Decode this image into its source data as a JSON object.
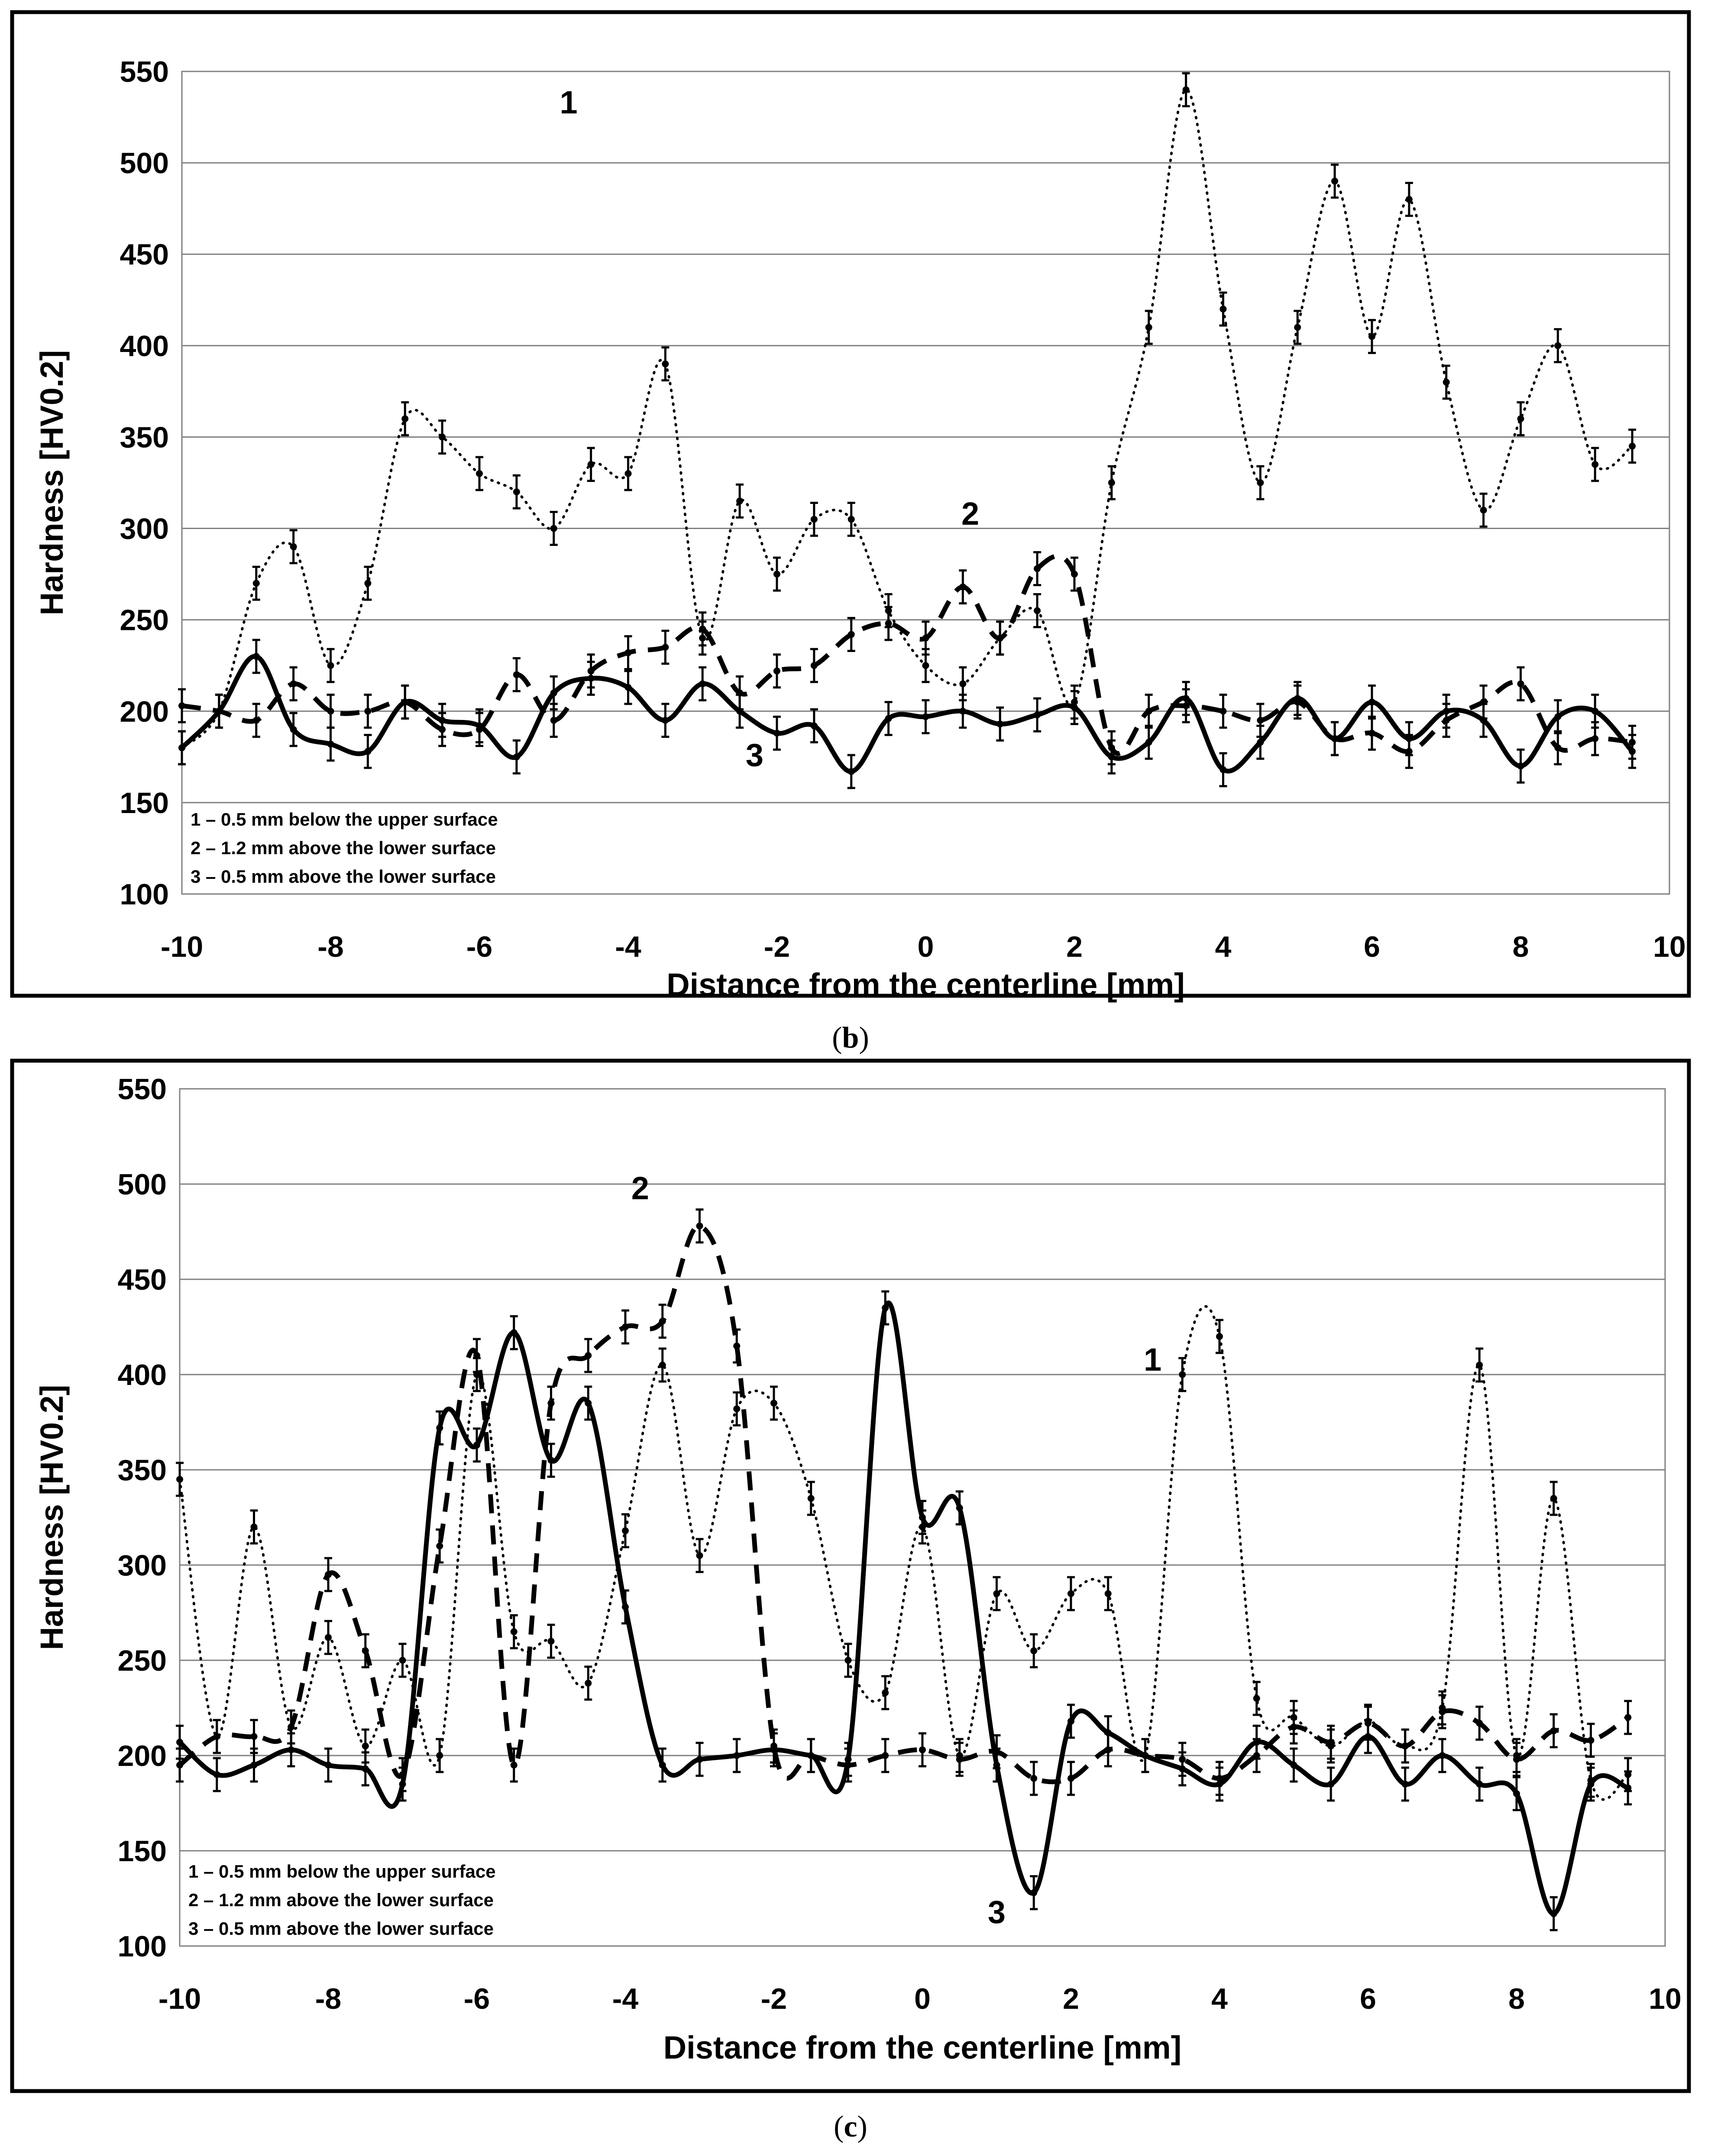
{
  "chart_data": [
    {
      "type": "line",
      "panel_label": "b",
      "xlabel": "Distance from the centerline [mm]",
      "ylabel": "Hardness [HV0.2]",
      "xlim": [
        -10,
        10
      ],
      "ylim": [
        100,
        550
      ],
      "xticks": [
        "-10",
        "-8",
        "-6",
        "-4",
        "-2",
        "0",
        "2",
        "4",
        "6",
        "8",
        "10"
      ],
      "yticks": [
        "100",
        "150",
        "200",
        "250",
        "300",
        "350",
        "400",
        "450",
        "500",
        "550"
      ],
      "grid": "horizontal",
      "legend": {
        "position": "bottom-left",
        "entries": [
          "1 – 0.5 mm below the upper surface",
          "2 – 1.2 mm above the lower surface",
          "3 – 0.5 mm above the lower surface"
        ]
      },
      "series": [
        {
          "name": "1",
          "style": "dotted",
          "label_at": [
            -4.8,
            527
          ],
          "x": [
            -10,
            -9.5,
            -9,
            -8.5,
            -8,
            -7.5,
            -7,
            -6.5,
            -6,
            -5.5,
            -5,
            -4.5,
            -4,
            -3.5,
            -3,
            -2.5,
            -2,
            -1.5,
            -1,
            -0.5,
            0,
            0.5,
            1,
            1.5,
            2,
            2.5,
            3,
            3.5,
            4,
            4.5,
            5,
            5.5,
            6,
            6.5,
            7,
            7.5,
            8,
            8.5,
            9,
            9.5
          ],
          "y": [
            180,
            200,
            270,
            290,
            225,
            270,
            360,
            350,
            330,
            320,
            300,
            335,
            330,
            390,
            240,
            315,
            275,
            305,
            305,
            255,
            225,
            215,
            240,
            255,
            205,
            325,
            410,
            540,
            420,
            325,
            410,
            490,
            405,
            480,
            380,
            310,
            360,
            400,
            335,
            345
          ]
        },
        {
          "name": "2",
          "style": "dashed",
          "label_at": [
            0.6,
            302
          ],
          "x": [
            -10,
            -9.5,
            -9,
            -8.5,
            -8,
            -7.5,
            -7,
            -6.5,
            -6,
            -5.5,
            -5,
            -4.5,
            -4,
            -3.5,
            -3,
            -2.5,
            -2,
            -1.5,
            -1,
            -0.5,
            0,
            0.5,
            1,
            1.5,
            2,
            2.5,
            3,
            3.5,
            4,
            4.5,
            5,
            5.5,
            6,
            6.5,
            7,
            7.5,
            8,
            8.5,
            9,
            9.5
          ],
          "y": [
            203,
            200,
            195,
            215,
            200,
            200,
            205,
            190,
            190,
            220,
            195,
            222,
            232,
            235,
            245,
            210,
            222,
            225,
            242,
            248,
            240,
            268,
            240,
            278,
            275,
            180,
            200,
            203,
            200,
            195,
            205,
            185,
            188,
            178,
            195,
            205,
            215,
            180,
            185,
            183
          ]
        },
        {
          "name": "3",
          "style": "solid",
          "label_at": [
            -2.3,
            170
          ],
          "x": [
            -10,
            -9.5,
            -9,
            -8.5,
            -8,
            -7.5,
            -7,
            -6.5,
            -6,
            -5.5,
            -5,
            -4.5,
            -4,
            -3.5,
            -3,
            -2.5,
            -2,
            -1.5,
            -1,
            -0.5,
            0,
            0.5,
            1,
            1.5,
            2,
            2.5,
            3,
            3.5,
            4,
            4.5,
            5,
            5.5,
            6,
            6.5,
            7,
            7.5,
            8,
            8.5,
            9,
            9.5
          ],
          "y": [
            180,
            200,
            230,
            190,
            182,
            178,
            205,
            195,
            192,
            175,
            210,
            218,
            213,
            195,
            215,
            200,
            188,
            192,
            167,
            196,
            197,
            200,
            193,
            198,
            202,
            175,
            183,
            207,
            168,
            183,
            207,
            185,
            205,
            185,
            200,
            195,
            170,
            197,
            200,
            178
          ]
        }
      ]
    },
    {
      "type": "line",
      "panel_label": "c",
      "xlabel": "Distance from the centerline [mm]",
      "ylabel": "Hardness [HV0.2]",
      "xlim": [
        -10,
        10
      ],
      "ylim": [
        100,
        550
      ],
      "xticks": [
        "-10",
        "-8",
        "-6",
        "-4",
        "-2",
        "0",
        "2",
        "4",
        "6",
        "8",
        "10"
      ],
      "yticks": [
        "100",
        "150",
        "200",
        "250",
        "300",
        "350",
        "400",
        "450",
        "500",
        "550"
      ],
      "grid": "horizontal",
      "legend": {
        "position": "bottom-left",
        "entries": [
          "1 – 0.5 mm below the upper surface",
          "2 – 1.2 mm above the lower surface",
          "3 – 0.5 mm above the lower surface"
        ]
      },
      "series": [
        {
          "name": "1",
          "style": "dotted",
          "label_at": [
            3.1,
            402
          ],
          "x": [
            -10,
            -9.5,
            -9,
            -8.5,
            -8,
            -7.5,
            -7,
            -6.5,
            -6,
            -5.5,
            -5,
            -4.5,
            -4,
            -3.5,
            -3,
            -2.5,
            -2,
            -1.5,
            -1,
            -0.5,
            0,
            0.5,
            1,
            1.5,
            2,
            2.5,
            3,
            3.5,
            4,
            4.5,
            5,
            5.5,
            6,
            6.5,
            7,
            7.5,
            8,
            8.5,
            9,
            9.5
          ],
          "y": [
            345,
            210,
            320,
            215,
            262,
            205,
            250,
            200,
            400,
            265,
            260,
            238,
            318,
            405,
            305,
            382,
            385,
            335,
            250,
            233,
            320,
            200,
            285,
            255,
            285,
            285,
            200,
            400,
            420,
            230,
            220,
            205,
            218,
            205,
            225,
            405,
            200,
            335,
            187,
            190
          ]
        },
        {
          "name": "2",
          "style": "dashed",
          "label_at": [
            -3.8,
            492
          ],
          "x": [
            -10,
            -9.5,
            -9,
            -8.5,
            -8,
            -7.5,
            -7,
            -6.5,
            -6,
            -5.5,
            -5,
            -4.5,
            -4,
            -3.5,
            -3,
            -2.5,
            -2,
            -1.5,
            -1,
            -0.5,
            0,
            0.5,
            1,
            1.5,
            2,
            2.5,
            3,
            3.5,
            4,
            4.5,
            5,
            5.5,
            6,
            6.5,
            7,
            7.5,
            8,
            8.5,
            9,
            9.5
          ],
          "y": [
            195,
            210,
            210,
            215,
            295,
            255,
            190,
            310,
            410,
            195,
            385,
            410,
            425,
            428,
            478,
            415,
            205,
            200,
            195,
            200,
            203,
            198,
            202,
            188,
            188,
            203,
            200,
            198,
            188,
            200,
            215,
            207,
            217,
            205,
            223,
            217,
            198,
            213,
            208,
            220
          ]
        },
        {
          "name": "3",
          "style": "solid",
          "label_at": [
            1.0,
            112
          ],
          "x": [
            -10,
            -9.5,
            -9,
            -8.5,
            -8,
            -7.5,
            -7,
            -6.5,
            -6,
            -5.5,
            -5,
            -4.5,
            -4,
            -3.5,
            -3,
            -2.5,
            -2,
            -1.5,
            -1,
            -0.5,
            0,
            0.5,
            1,
            1.5,
            2,
            2.5,
            3,
            3.5,
            4,
            4.5,
            5,
            5.5,
            6,
            6.5,
            7,
            7.5,
            8,
            8.5,
            9,
            9.5
          ],
          "y": [
            207,
            190,
            195,
            203,
            195,
            193,
            185,
            372,
            363,
            422,
            355,
            385,
            278,
            195,
            198,
            200,
            203,
            200,
            198,
            435,
            325,
            330,
            195,
            128,
            218,
            212,
            200,
            193,
            185,
            207,
            195,
            185,
            210,
            185,
            200,
            185,
            180,
            117,
            185,
            183
          ]
        }
      ]
    }
  ]
}
